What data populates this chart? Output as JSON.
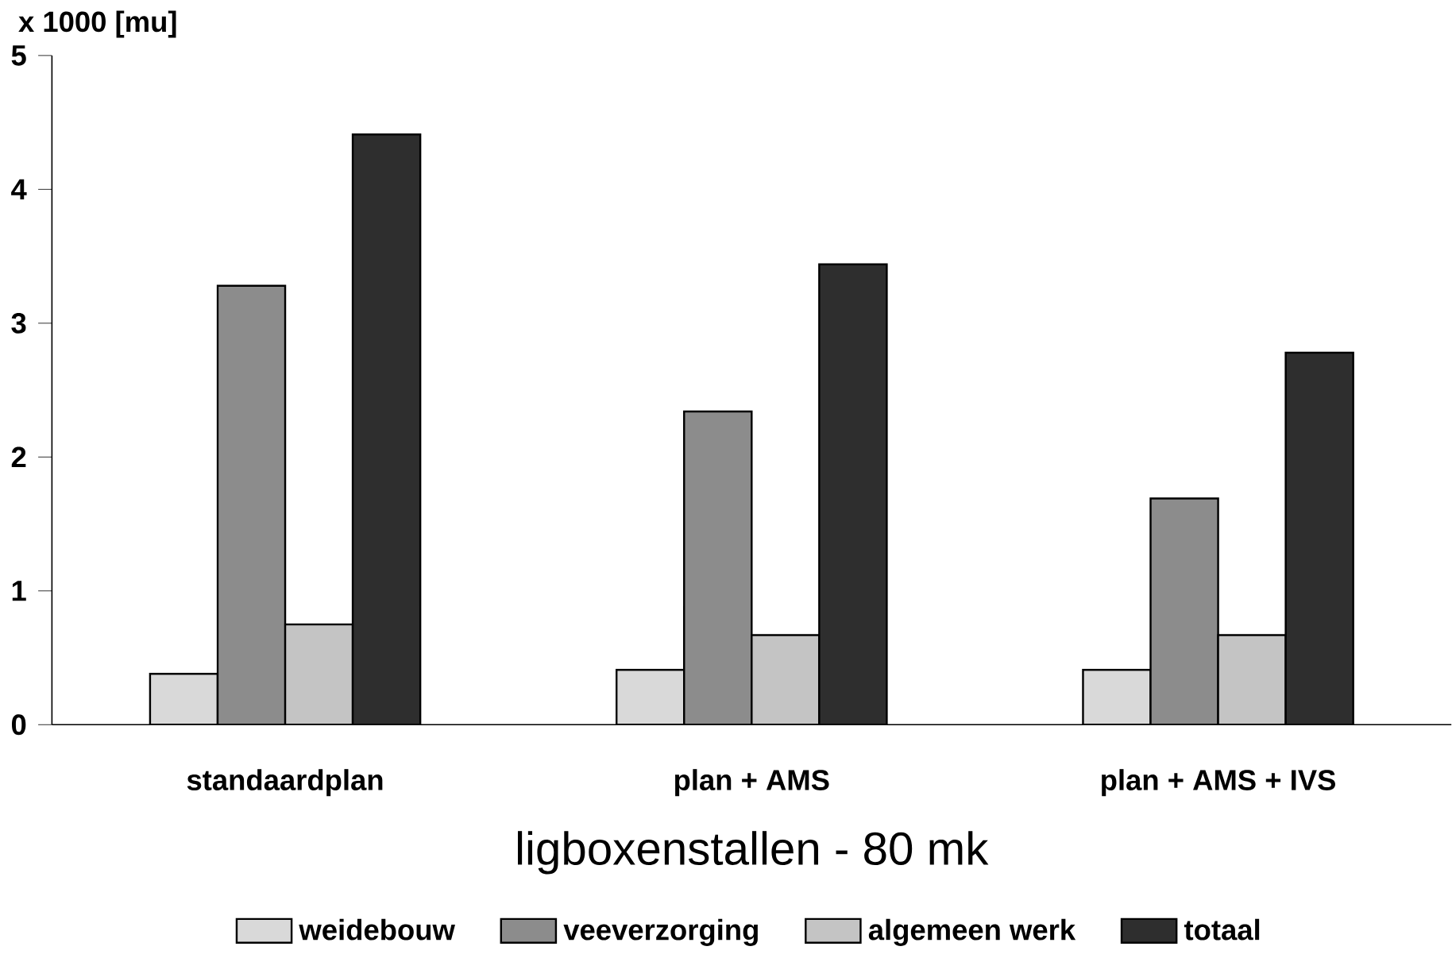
{
  "chart_data": {
    "type": "bar",
    "ylabel": "x 1000 [mu]",
    "xlabel": "ligboxenstallen - 80 mk",
    "categories": [
      "standaardplan",
      "plan + AMS",
      "plan + AMS + IVS"
    ],
    "series": [
      {
        "name": "weidebouw",
        "color": "#d9d9d9",
        "values": [
          0.38,
          0.41,
          0.41
        ]
      },
      {
        "name": "veeverzorging",
        "color": "#8c8c8c",
        "values": [
          3.28,
          2.34,
          1.69
        ]
      },
      {
        "name": "algemeen werk",
        "color": "#c4c4c4",
        "values": [
          0.75,
          0.67,
          0.67
        ]
      },
      {
        "name": "totaal",
        "color": "#2e2e2e",
        "values": [
          4.41,
          3.44,
          2.78
        ]
      }
    ],
    "ylim": [
      0,
      5
    ],
    "yticks": [
      0,
      1,
      2,
      3,
      4,
      5
    ],
    "grid": false,
    "legend": "bottom"
  }
}
